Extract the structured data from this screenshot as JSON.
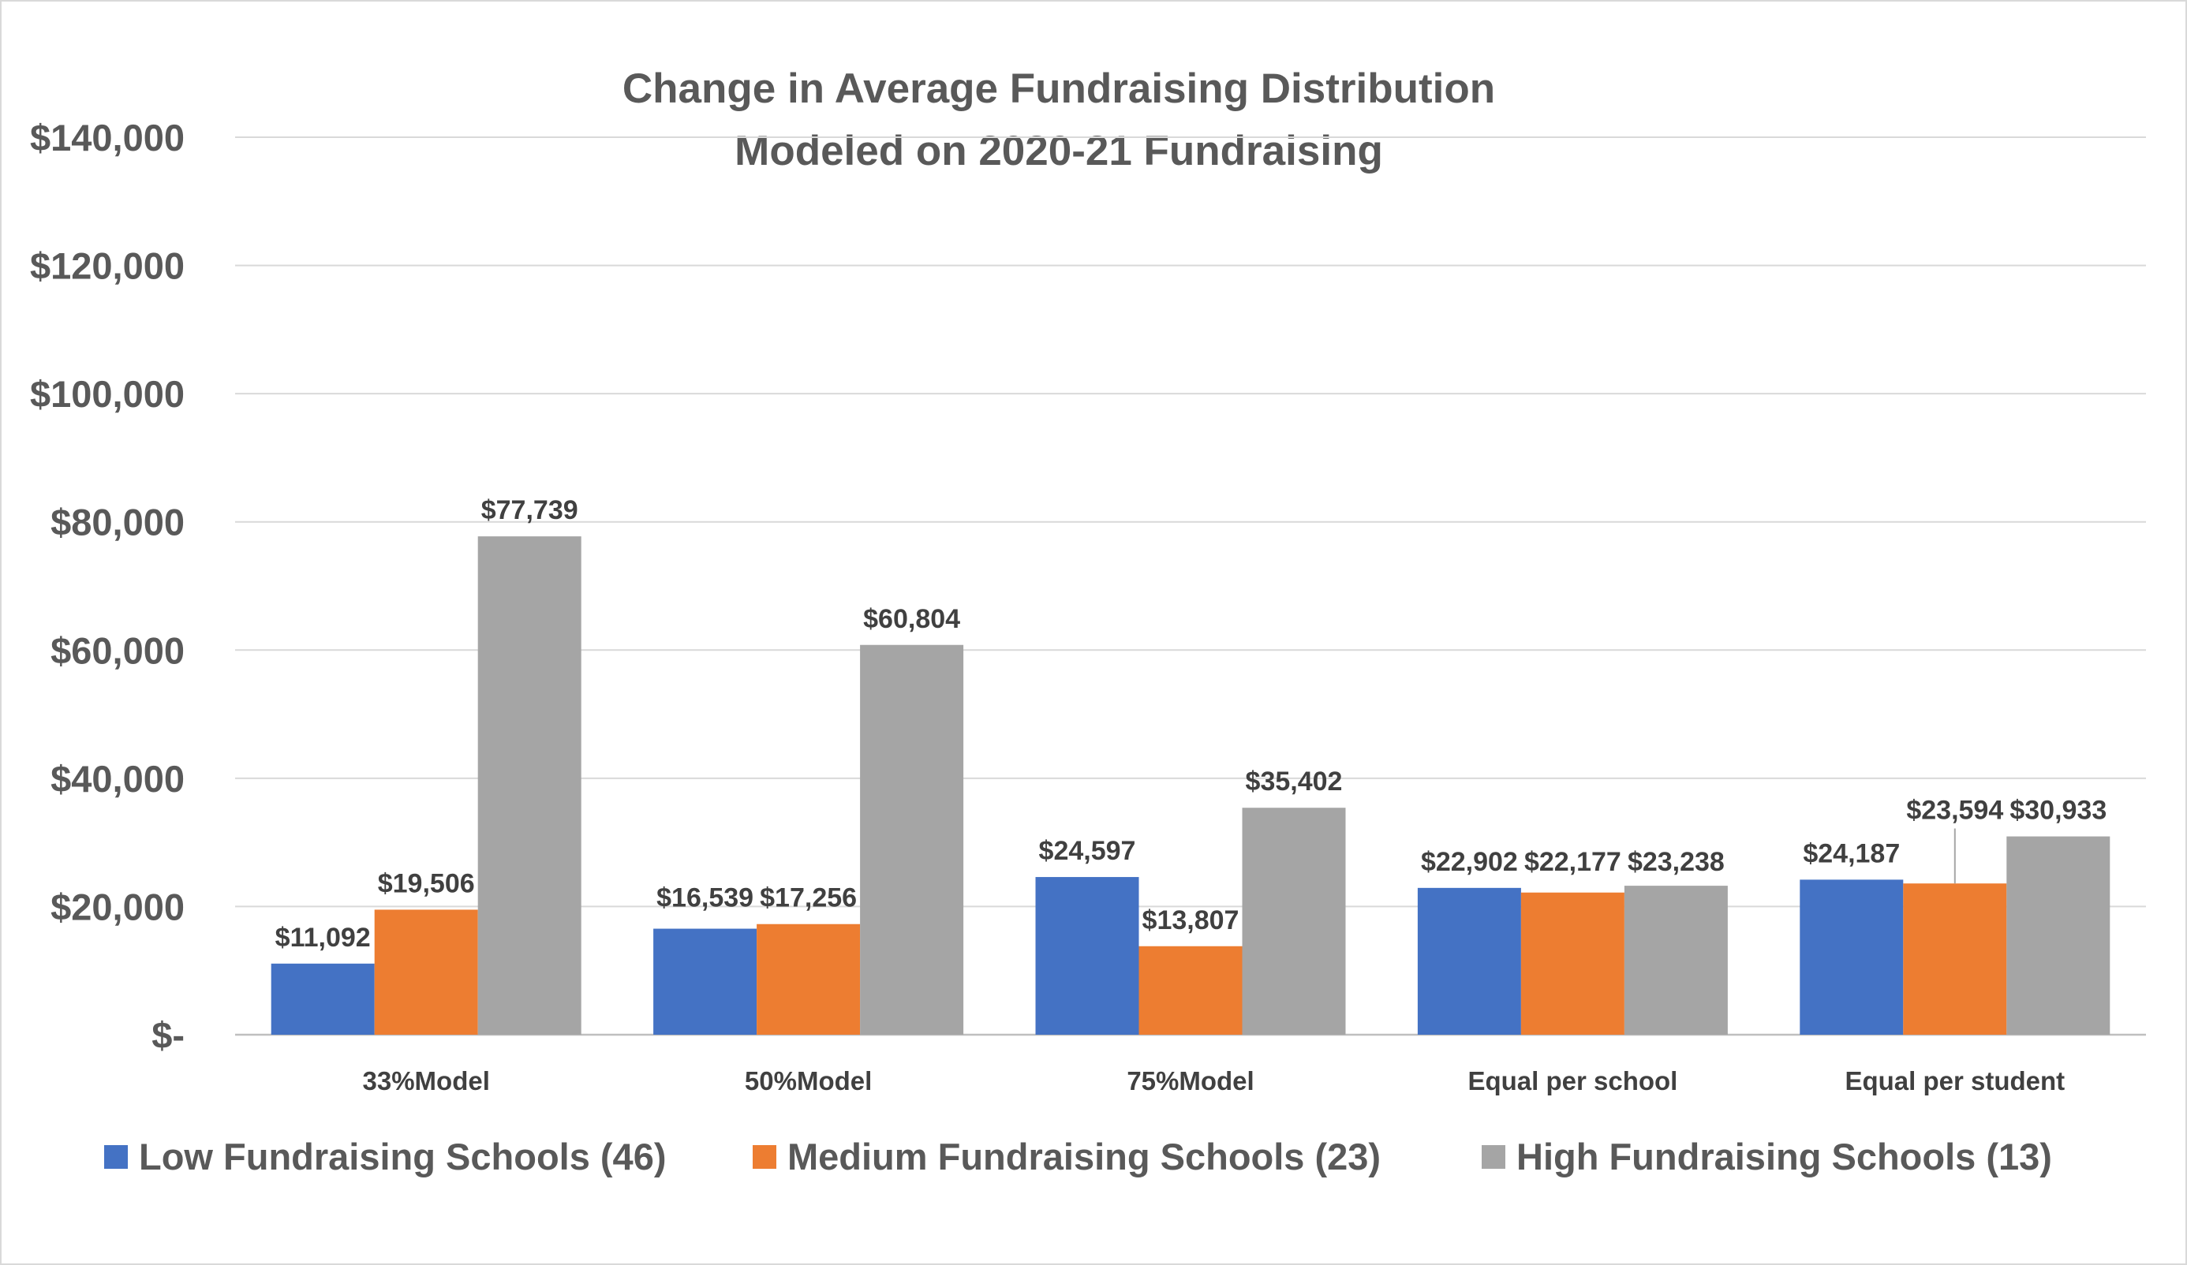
{
  "chart_data": {
    "type": "bar",
    "title_lines": [
      "Change in Average Fundraising Distribution",
      "Modeled on 2020-21 Fundraising"
    ],
    "categories": [
      "33%Model",
      "50%Model",
      "75%Model",
      "Equal per school",
      "Equal per student"
    ],
    "series": [
      {
        "name": "Low Fundraising Schools (46)",
        "color": "#4472C4",
        "values": [
          11092,
          16539,
          24597,
          22902,
          24187
        ],
        "labels": [
          "$11,092",
          "$16,539",
          "$24,597",
          "$22,902",
          "$24,187"
        ]
      },
      {
        "name": "Medium Fundraising Schools (23)",
        "color": "#ED7D31",
        "values": [
          19506,
          17256,
          13807,
          22177,
          23594
        ],
        "labels": [
          "$19,506",
          "$17,256",
          "$13,807",
          "$22,177",
          "$23,594"
        ]
      },
      {
        "name": "High Fundraising Schools (13)",
        "color": "#A5A5A5",
        "values": [
          77739,
          60804,
          35402,
          23238,
          30933
        ],
        "labels": [
          "$77,739",
          "$60,804",
          "$35,402",
          "$23,238",
          "$30,933"
        ]
      }
    ],
    "ylim": [
      0,
      140000
    ],
    "yticks": [
      {
        "value": 0,
        "label": "$-"
      },
      {
        "value": 20000,
        "label": "$20,000"
      },
      {
        "value": 40000,
        "label": "$40,000"
      },
      {
        "value": 60000,
        "label": "$60,000"
      },
      {
        "value": 80000,
        "label": "$80,000"
      },
      {
        "value": 100000,
        "label": "$100,000"
      },
      {
        "value": 120000,
        "label": "$120,000"
      },
      {
        "value": 140000,
        "label": "$140,000"
      }
    ],
    "grid": true,
    "legend_position": "bottom"
  }
}
